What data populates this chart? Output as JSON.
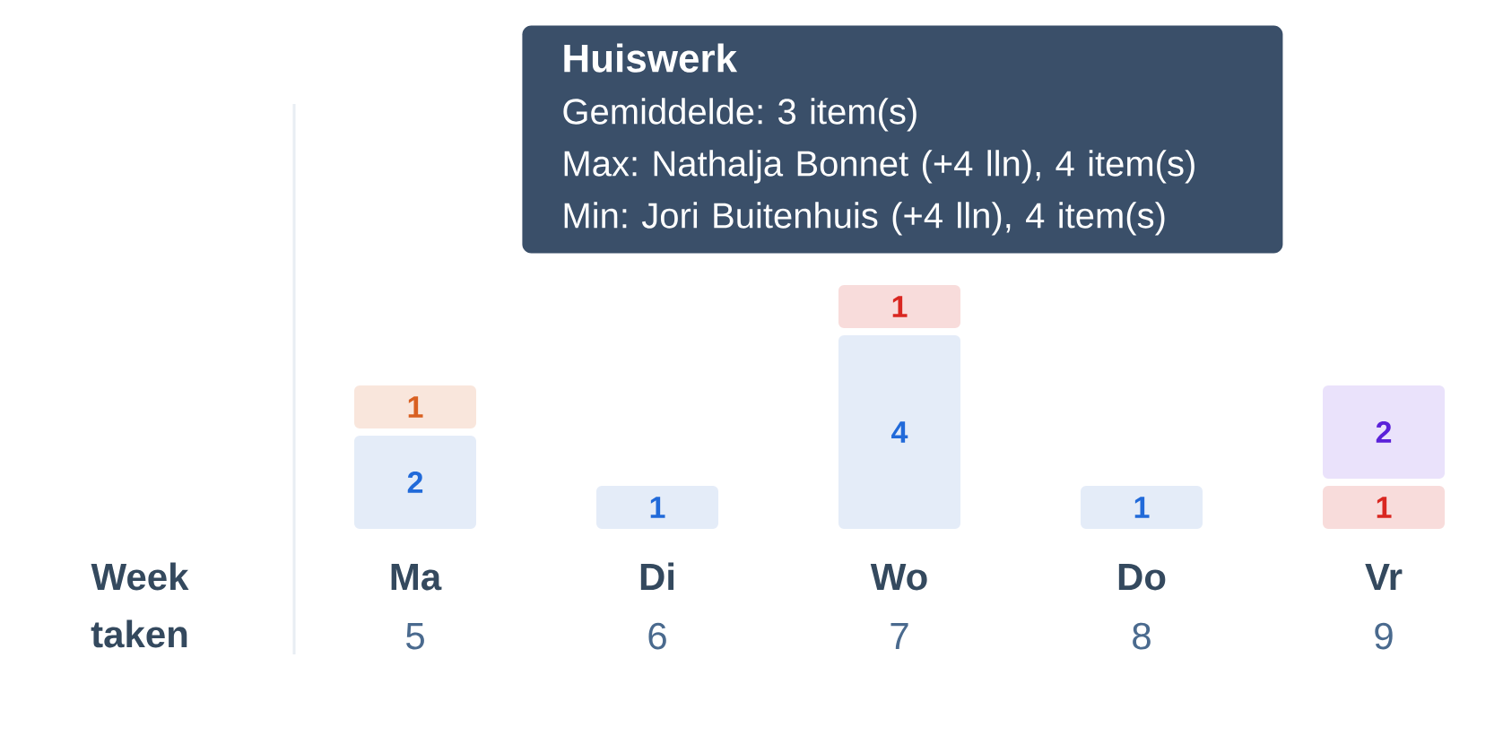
{
  "chart_data": {
    "type": "bar",
    "stacked": true,
    "data_labels": true,
    "categories": [
      "Ma",
      "Di",
      "Wo",
      "Do",
      "Vr"
    ],
    "xlabel": "Week taken",
    "x2lim": [
      5,
      9
    ],
    "x2ticks": [
      5,
      6,
      7,
      8,
      9
    ],
    "series": [
      {
        "color": "#e4ecf8",
        "values": [
          2,
          1,
          4,
          1,
          null
        ]
      },
      {
        "color": "#f9e6dc",
        "values": [
          1,
          null,
          null,
          null,
          null
        ]
      },
      {
        "color": "#f8dcdb",
        "values": [
          null,
          null,
          1,
          null,
          1
        ]
      },
      {
        "color": "#eae2fb",
        "values": [
          null,
          null,
          null,
          null,
          2
        ]
      }
    ],
    "annotations": [
      "Huiswerk",
      "Gemiddelde: 3 item(s)",
      "Max: Nathalja Bonnet (+4 lln), 4 item(s)",
      "Min: Jori Buitenhuis (+4 lln), 4 item(s)"
    ]
  }
}
